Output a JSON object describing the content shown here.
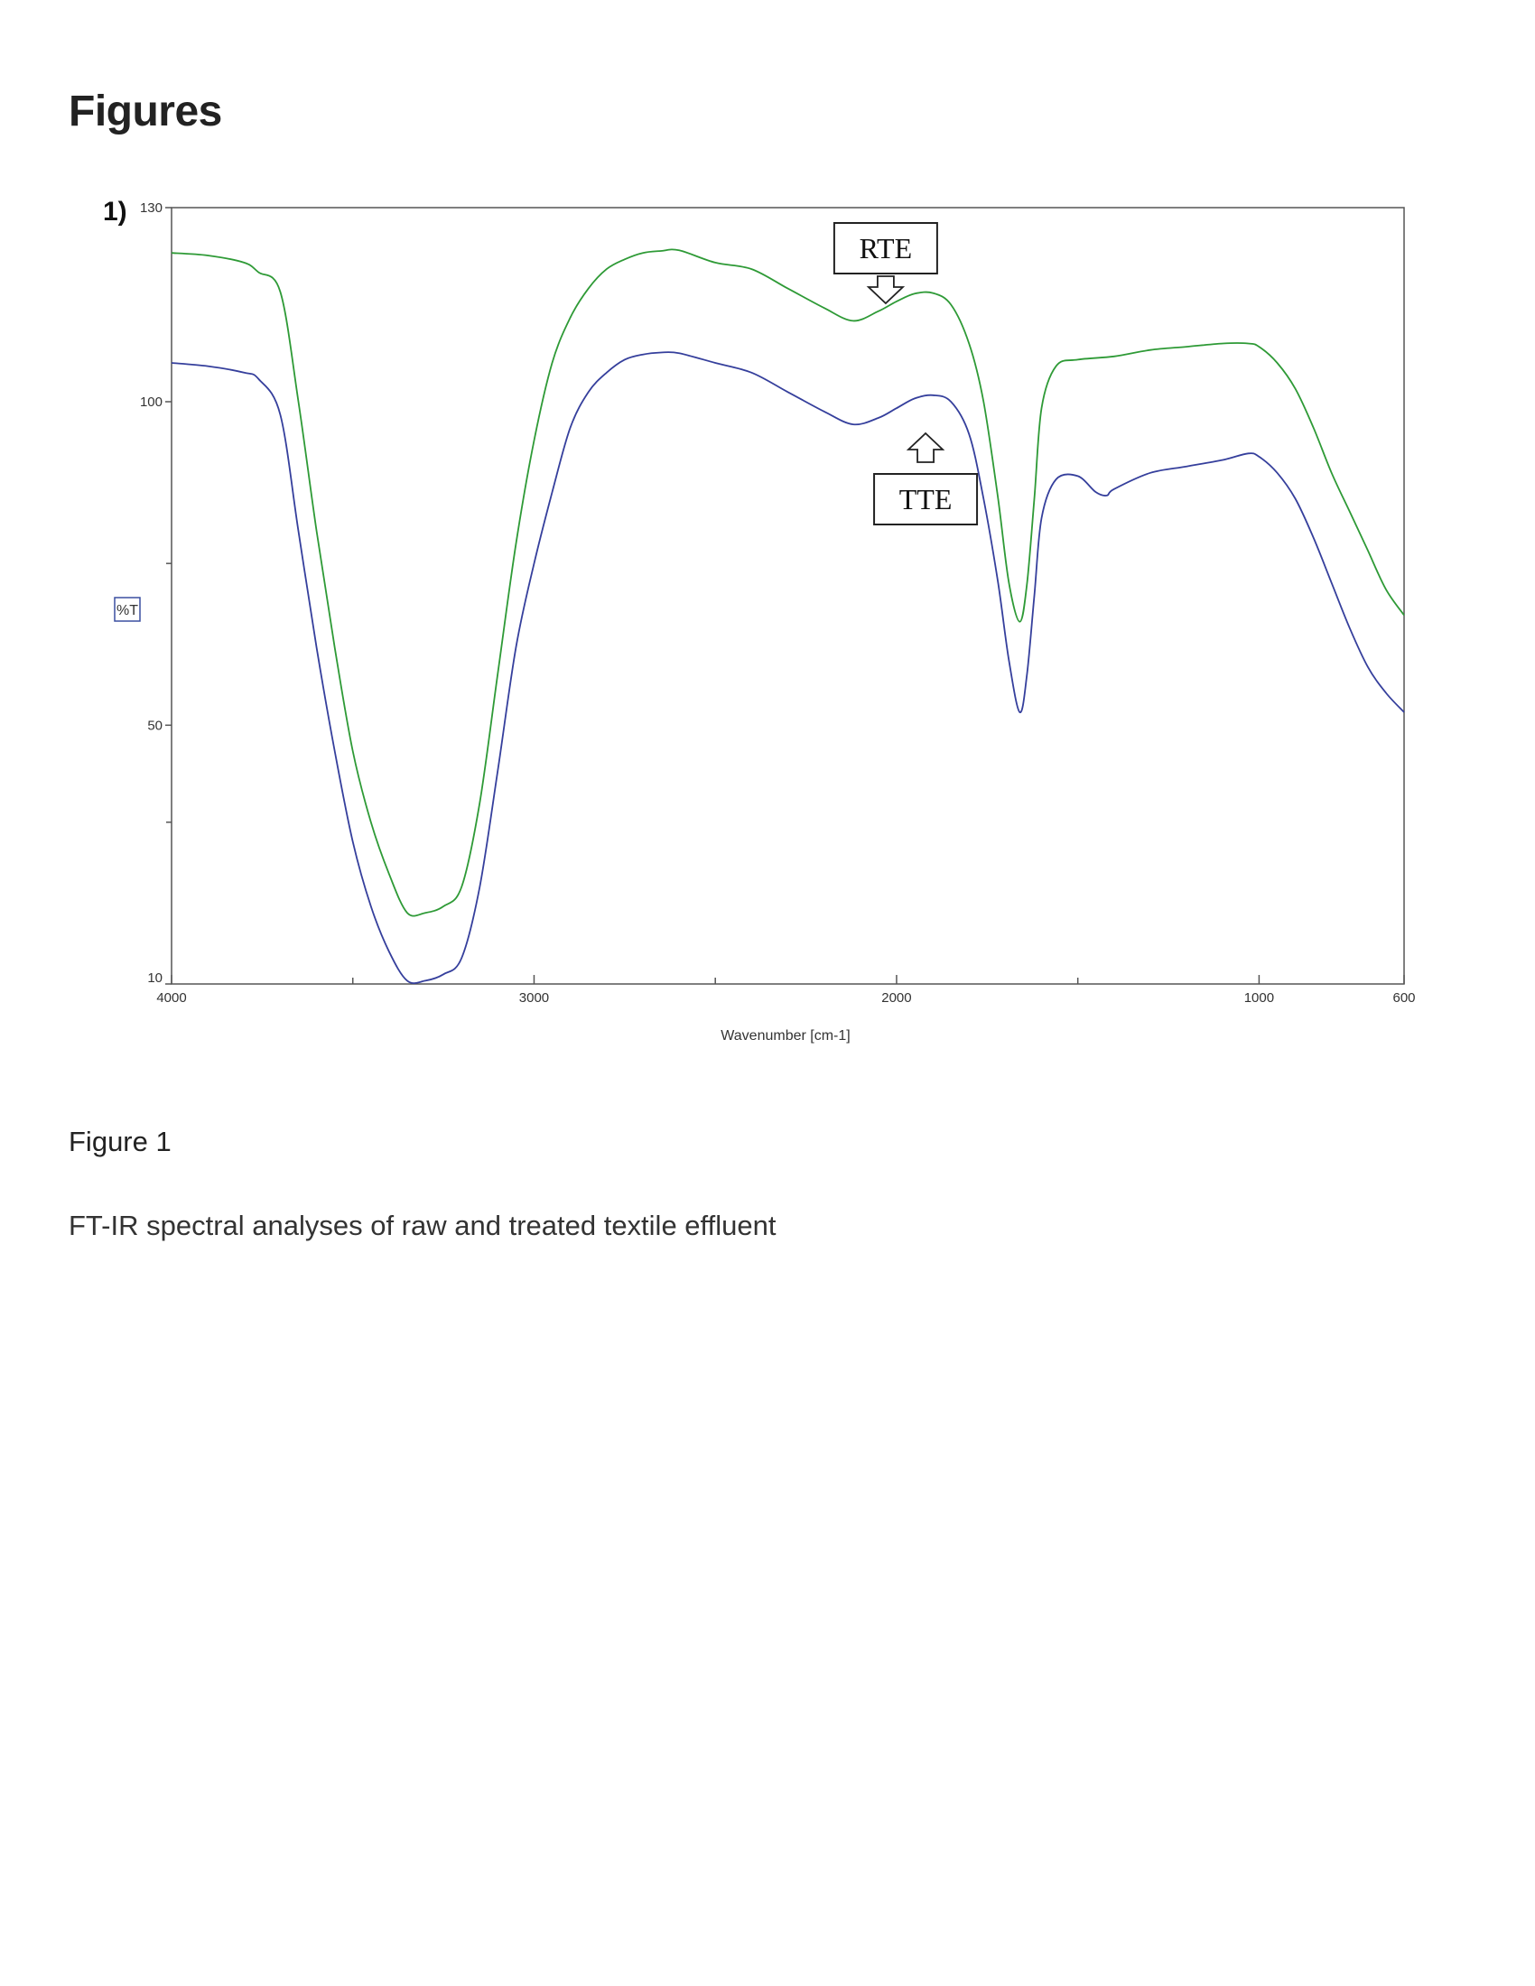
{
  "page": {
    "heading": "Figures",
    "figure_label": "Figure 1",
    "caption": "FT-IR spectral analyses of raw and treated textile effluent"
  },
  "colors": {
    "rte": "#2e9a36",
    "tte": "#353f9c",
    "axis": "#555555"
  },
  "chart_data": {
    "type": "line",
    "panel_label": "1)",
    "title": "",
    "xlabel": "Wavenumber [cm-1]",
    "ylabel": "%T",
    "xlim": [
      4000,
      600
    ],
    "ylim": [
      10,
      130
    ],
    "x_reversed": true,
    "x_ticks": [
      4000,
      3000,
      2000,
      1000,
      600
    ],
    "x_minor_ticks": [
      3500,
      2500,
      1500
    ],
    "y_ticks": [
      10,
      50,
      100,
      130
    ],
    "y_minor_ticks": [
      35,
      75
    ],
    "grid": false,
    "legend": "none",
    "annotations": [
      {
        "label": "RTE",
        "series": "RTE",
        "x": 2030,
        "arrow": "down"
      },
      {
        "label": "TTE",
        "series": "TTE",
        "x": 1920,
        "arrow": "up"
      }
    ],
    "series": [
      {
        "key": "RTE",
        "x": [
          4000,
          3900,
          3800,
          3760,
          3700,
          3650,
          3600,
          3550,
          3500,
          3450,
          3400,
          3350,
          3300,
          3250,
          3200,
          3150,
          3100,
          3050,
          3000,
          2950,
          2900,
          2850,
          2800,
          2750,
          2700,
          2650,
          2600,
          2500,
          2400,
          2300,
          2200,
          2120,
          2050,
          2000,
          1950,
          1900,
          1850,
          1800,
          1760,
          1720,
          1690,
          1660,
          1640,
          1620,
          1600,
          1560,
          1500,
          1400,
          1300,
          1200,
          1100,
          1030,
          1000,
          950,
          900,
          850,
          800,
          750,
          700,
          650,
          600
        ],
        "y": [
          123,
          122.6,
          121.5,
          120,
          117,
          100,
          80,
          62,
          46,
          35,
          27,
          21,
          21,
          22,
          25,
          38,
          58,
          78,
          94,
          106,
          113,
          117.5,
          120.5,
          122,
          123,
          123.3,
          123.4,
          121.5,
          120.5,
          117.5,
          114.5,
          112.5,
          114,
          115.5,
          116.7,
          116.8,
          115,
          109,
          100,
          85,
          72,
          66,
          72,
          85,
          99,
          105.5,
          106.5,
          107,
          108,
          108.5,
          109,
          109,
          108.5,
          106,
          102,
          96,
          89,
          83,
          77,
          71,
          67
        ]
      },
      {
        "key": "TTE",
        "x": [
          4000,
          3900,
          3800,
          3760,
          3700,
          3650,
          3600,
          3550,
          3500,
          3450,
          3400,
          3350,
          3300,
          3250,
          3200,
          3150,
          3100,
          3050,
          3000,
          2950,
          2900,
          2850,
          2800,
          2750,
          2700,
          2650,
          2600,
          2500,
          2400,
          2300,
          2200,
          2120,
          2050,
          2000,
          1950,
          1900,
          1850,
          1800,
          1760,
          1720,
          1690,
          1660,
          1640,
          1620,
          1600,
          1560,
          1500,
          1450,
          1420,
          1400,
          1300,
          1200,
          1100,
          1030,
          1000,
          950,
          900,
          850,
          800,
          750,
          700,
          650,
          600
        ],
        "y": [
          106,
          105.5,
          104.5,
          103.5,
          98,
          80,
          62,
          46,
          32,
          22,
          15,
          10.5,
          10.5,
          11.5,
          14,
          25,
          43,
          62,
          75,
          86,
          96,
          101.5,
          104.5,
          106.5,
          107.3,
          107.6,
          107.5,
          106,
          104.5,
          101.5,
          98.5,
          96.5,
          97.5,
          99,
          100.5,
          101,
          100,
          95,
          85,
          72,
          60,
          52,
          58,
          70,
          82,
          88,
          88.5,
          86,
          85.5,
          86.5,
          89,
          90,
          91,
          92,
          91.5,
          89,
          85,
          79,
          72,
          65,
          59,
          55,
          52
        ]
      }
    ]
  }
}
